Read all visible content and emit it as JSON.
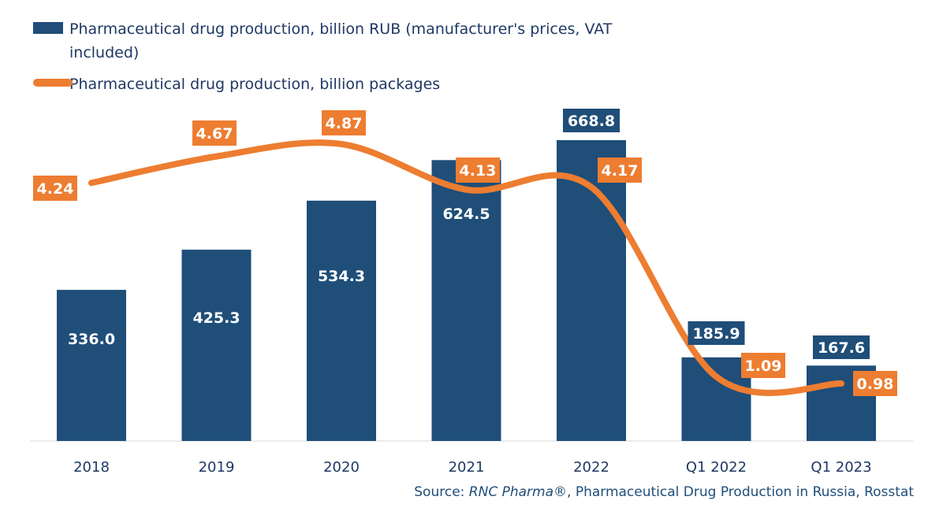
{
  "legend": {
    "bars_label": "Pharmaceutical drug production, billion RUB (manufacturer's prices, VAT included)",
    "line_label": "Pharmaceutical drug production, billion packages"
  },
  "source": {
    "prefix": "Source: ",
    "brand": "RNC Pharma®",
    "rest": ", Pharmaceutical Drug Production in Russia, Rosstat"
  },
  "colors": {
    "bar": "#1f4e79",
    "line": "#ed7d31",
    "axis_text": "#1f3864",
    "baseline": "#d9d9d9"
  },
  "chart_data": {
    "type": "bar",
    "categories": [
      "2018",
      "2019",
      "2020",
      "2021",
      "2022",
      "Q1 2022",
      "Q1 2023"
    ],
    "series": [
      {
        "name": "Pharmaceutical drug production, billion RUB (manufacturer's prices, VAT included)",
        "type": "bar",
        "values": [
          336.0,
          425.3,
          534.3,
          624.5,
          668.8,
          185.9,
          167.6
        ],
        "labels": [
          "336.0",
          "425.3",
          "534.3",
          "624.5",
          "668.8",
          "185.9",
          "167.6"
        ]
      },
      {
        "name": "Pharmaceutical drug production, billion packages",
        "type": "line",
        "values": [
          4.24,
          4.67,
          4.87,
          4.13,
          4.17,
          1.09,
          0.98
        ],
        "labels": [
          "4.24",
          "4.67",
          "4.87",
          "4.13",
          "4.17",
          "1.09",
          "0.98"
        ]
      }
    ],
    "ylim_bars": [
      0,
      700
    ],
    "ylim_line": [
      0,
      5.3
    ],
    "grid": false,
    "legend_position": "top-left"
  }
}
